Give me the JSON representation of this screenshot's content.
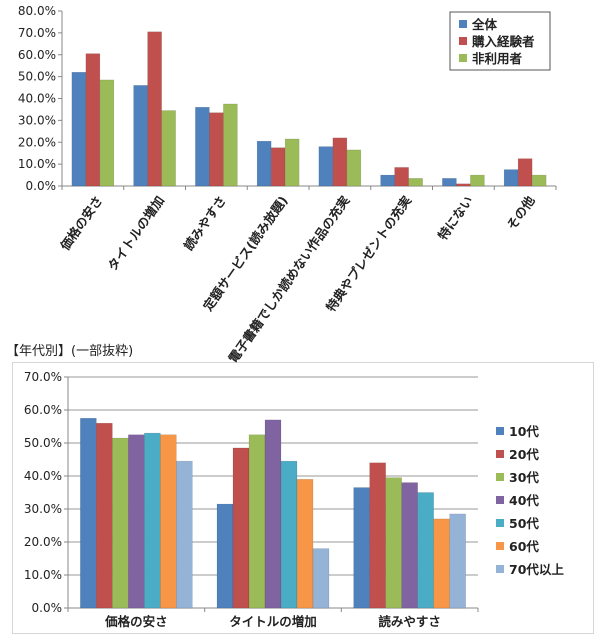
{
  "section_label": "【年代別】(一部抜粋)",
  "chart_data": [
    {
      "type": "bar",
      "title": "",
      "xlabel": "",
      "ylabel": "",
      "ylim": [
        0,
        80
      ],
      "y_ticks": [
        "0.0%",
        "10.0%",
        "20.0%",
        "30.0%",
        "40.0%",
        "50.0%",
        "60.0%",
        "70.0%",
        "80.0%"
      ],
      "categories": [
        "価格の安さ",
        "タイトルの増加",
        "読みやすさ",
        "定額サービス(読み放題)",
        "電子書籍でしか読めない作品の充実",
        "特典やプレゼントの充実",
        "特にない",
        "その他"
      ],
      "series": [
        {
          "name": "全体",
          "color": "#4f81bd",
          "values": [
            52,
            46,
            36,
            20.5,
            18,
            5,
            3.5,
            7.5
          ]
        },
        {
          "name": "購入経験者",
          "color": "#c0504d",
          "values": [
            60.5,
            70.5,
            33.5,
            17.5,
            22,
            8.5,
            1,
            12.5
          ]
        },
        {
          "name": "非利用者",
          "color": "#9bbb59",
          "values": [
            48.5,
            34.5,
            37.5,
            21.5,
            16.5,
            3.5,
            5,
            5
          ]
        }
      ],
      "legend": "top-right",
      "grid": false
    },
    {
      "type": "bar",
      "title": "",
      "xlabel": "",
      "ylabel": "",
      "ylim": [
        0,
        70
      ],
      "y_ticks": [
        "0.0%",
        "10.0%",
        "20.0%",
        "30.0%",
        "40.0%",
        "50.0%",
        "60.0%",
        "70.0%"
      ],
      "categories": [
        "価格の安さ",
        "タイトルの増加",
        "読みやすさ"
      ],
      "series": [
        {
          "name": "10代",
          "color": "#4f81bd",
          "values": [
            57.5,
            31.5,
            36.5
          ]
        },
        {
          "name": "20代",
          "color": "#c0504d",
          "values": [
            56,
            48.5,
            44
          ]
        },
        {
          "name": "30代",
          "color": "#9bbb59",
          "values": [
            51.5,
            52.5,
            39.5
          ]
        },
        {
          "name": "40代",
          "color": "#8064a2",
          "values": [
            52.5,
            57,
            38
          ]
        },
        {
          "name": "50代",
          "color": "#4bacc6",
          "values": [
            53,
            44.5,
            35
          ]
        },
        {
          "name": "60代",
          "color": "#f79646",
          "values": [
            52.5,
            39,
            27
          ]
        },
        {
          "name": "70代以上",
          "color": "#95b3d7",
          "values": [
            44.5,
            18,
            28.5
          ]
        }
      ],
      "legend": "right",
      "grid": true
    }
  ]
}
